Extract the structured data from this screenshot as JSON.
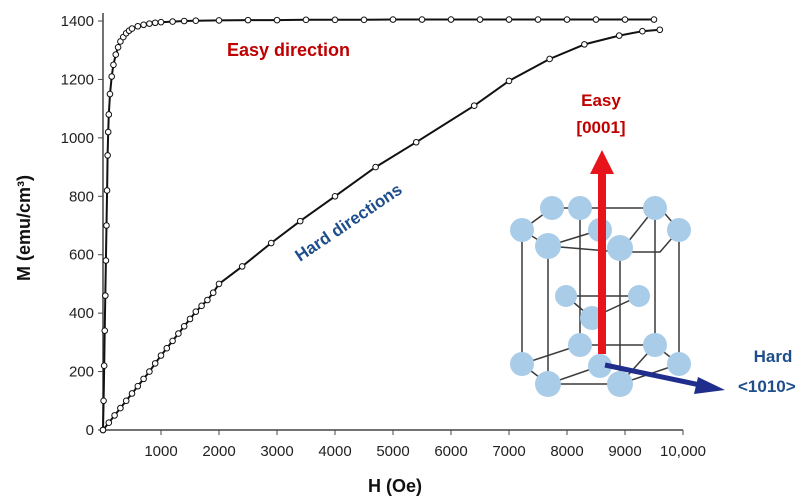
{
  "chart_data": {
    "type": "line",
    "xlabel": "H (Oe)",
    "ylabel": "M (emu/cm³)",
    "xlim": [
      0,
      10000
    ],
    "ylim": [
      0,
      1400
    ],
    "x_ticks": [
      1000,
      2000,
      3000,
      4000,
      5000,
      6000,
      7000,
      8000,
      9000,
      10000
    ],
    "x_tick_labels": [
      "1000",
      "2000",
      "3000",
      "4000",
      "5000",
      "6000",
      "7000",
      "8000",
      "9000",
      "10,000"
    ],
    "y_ticks": [
      0,
      200,
      400,
      600,
      800,
      1000,
      1200,
      1400
    ],
    "y_tick_labels": [
      "0",
      "200",
      "400",
      "600",
      "800",
      "1000",
      "1200",
      "1400"
    ],
    "grid": false,
    "series": [
      {
        "name": "Easy direction",
        "color": "#c00000",
        "line_color": "#111111",
        "marker": "open-circle",
        "x": [
          0,
          10,
          20,
          30,
          40,
          50,
          60,
          70,
          80,
          90,
          100,
          120,
          150,
          180,
          220,
          260,
          300,
          350,
          400,
          450,
          500,
          600,
          700,
          800,
          900,
          1000,
          1200,
          1400,
          1600,
          2000,
          2500,
          3000,
          3500,
          4000,
          4500,
          5000,
          5500,
          6000,
          6500,
          7000,
          7500,
          8000,
          8500,
          9000,
          9500
        ],
        "y": [
          0,
          100,
          220,
          340,
          460,
          580,
          700,
          820,
          940,
          1020,
          1080,
          1150,
          1210,
          1250,
          1285,
          1310,
          1330,
          1345,
          1358,
          1367,
          1374,
          1382,
          1387,
          1391,
          1394,
          1396,
          1398,
          1400,
          1401,
          1402,
          1403,
          1403,
          1404,
          1404,
          1404,
          1405,
          1405,
          1405,
          1405,
          1405,
          1405,
          1405,
          1405,
          1405,
          1405
        ]
      },
      {
        "name": "Hard directions",
        "color": "#1f4e8c",
        "line_color": "#111111",
        "marker": "open-circle",
        "x": [
          0,
          100,
          200,
          300,
          400,
          500,
          600,
          700,
          800,
          900,
          1000,
          1100,
          1200,
          1300,
          1400,
          1500,
          1600,
          1700,
          1800,
          1900,
          2000,
          2400,
          2900,
          3400,
          4000,
          4700,
          5400,
          6400,
          7000,
          7700,
          8300,
          8900,
          9300,
          9600
        ],
        "y": [
          0,
          25,
          50,
          75,
          100,
          125,
          150,
          175,
          200,
          228,
          255,
          280,
          305,
          330,
          355,
          380,
          405,
          425,
          445,
          470,
          500,
          560,
          640,
          715,
          800,
          900,
          985,
          1110,
          1195,
          1270,
          1320,
          1350,
          1365,
          1370
        ]
      }
    ],
    "annotations": [
      {
        "text": "Easy direction",
        "color": "#c00000"
      },
      {
        "text": "Hard directions",
        "color": "#1f4e8c"
      },
      {
        "text": "Easy",
        "color": "#c00000"
      },
      {
        "text": "[0001]",
        "color": "#c00000"
      },
      {
        "text": "Hard",
        "color": "#1f4e8c"
      },
      {
        "text": "<1010>",
        "color": "#1f4e8c"
      }
    ]
  }
}
